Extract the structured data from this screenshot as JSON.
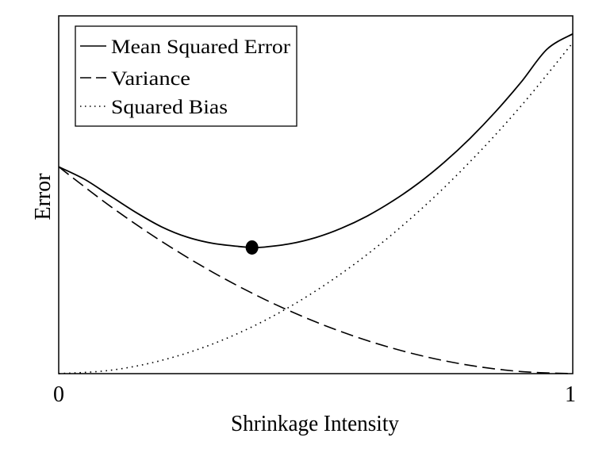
{
  "chart_data": {
    "type": "line",
    "title": "",
    "xlabel": "Shrinkage Intensity",
    "ylabel": "Error",
    "xlim": [
      0,
      1
    ],
    "ylim": [
      0,
      1.73
    ],
    "x_ticks": [
      "0",
      "1"
    ],
    "grid": false,
    "legend_position": "top-left",
    "series": [
      {
        "name": "Mean Squared Error",
        "style": "solid",
        "x": [
          0,
          0.05,
          0.1,
          0.15,
          0.2,
          0.25,
          0.3,
          0.35,
          0.376,
          0.4,
          0.45,
          0.5,
          0.55,
          0.6,
          0.65,
          0.7,
          0.75,
          0.8,
          0.85,
          0.9,
          0.95,
          1.0
        ],
        "y": [
          1.0,
          0.94,
          0.86,
          0.78,
          0.71,
          0.66,
          0.63,
          0.615,
          0.61,
          0.612,
          0.628,
          0.658,
          0.703,
          0.762,
          0.835,
          0.921,
          1.022,
          1.137,
          1.267,
          1.411,
          1.569,
          1.643
        ]
      },
      {
        "name": "Variance",
        "style": "dashed",
        "x": [
          0,
          0.1,
          0.2,
          0.3,
          0.4,
          0.5,
          0.6,
          0.7,
          0.8,
          0.9,
          1.0
        ],
        "y": [
          1.0,
          0.81,
          0.64,
          0.49,
          0.36,
          0.25,
          0.16,
          0.09,
          0.04,
          0.01,
          0.0
        ]
      },
      {
        "name": "Squared Bias",
        "style": "dotted",
        "x": [
          0,
          0.1,
          0.2,
          0.3,
          0.4,
          0.5,
          0.6,
          0.7,
          0.8,
          0.9,
          1.0
        ],
        "y": [
          0.0,
          0.016,
          0.064,
          0.144,
          0.256,
          0.4,
          0.576,
          0.784,
          1.024,
          1.296,
          1.6
        ]
      }
    ],
    "annotations": [
      {
        "type": "marker",
        "x": 0.376,
        "y": 0.61
      }
    ]
  },
  "colors": {
    "line": "#000000",
    "background": "#ffffff"
  }
}
